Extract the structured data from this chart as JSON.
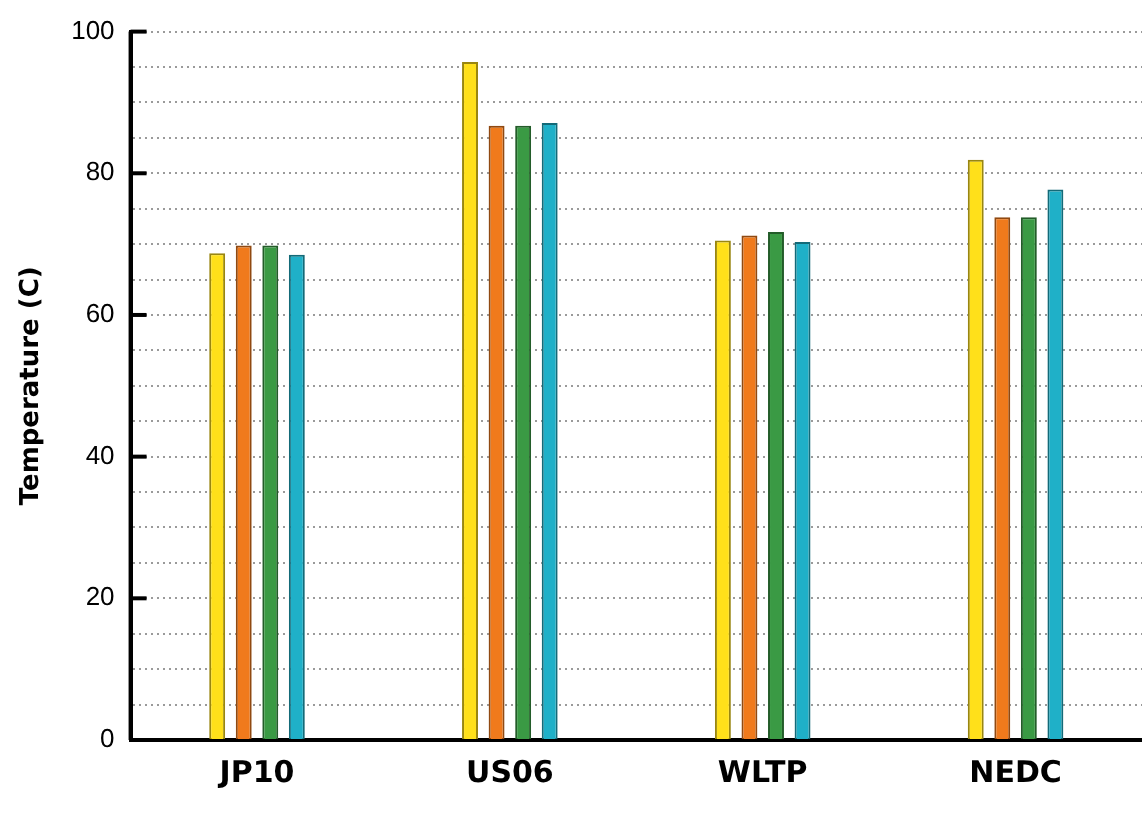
{
  "chart_data": {
    "type": "bar",
    "ylabel": "Temperature (C)",
    "categories": [
      "JP10",
      "US06",
      "WLTP",
      "NEDC"
    ],
    "series": [
      {
        "color": "#ffe01a",
        "values": [
          68.7,
          95.7,
          70.5,
          81.9
        ]
      },
      {
        "color": "#f07a1c",
        "values": [
          69.8,
          86.7,
          71.2,
          73.8
        ]
      },
      {
        "color": "#3a9a44",
        "values": [
          69.8,
          86.7,
          71.7,
          73.8
        ]
      },
      {
        "color": "#1fb0c8",
        "values": [
          68.5,
          87.1,
          70.3,
          77.7
        ]
      }
    ],
    "ylim": [
      0,
      100
    ],
    "yticks": [
      0,
      {
        "value": 5,
        "label": null
      },
      {
        "value": 10,
        "label": null
      },
      {
        "value": 15,
        "label": null
      },
      20,
      {
        "value": 25,
        "label": null
      },
      {
        "value": 30,
        "label": null
      },
      {
        "value": 35,
        "label": null
      },
      40,
      {
        "value": 45,
        "label": null
      },
      {
        "value": 50,
        "label": null
      },
      {
        "value": 55,
        "label": null
      },
      60,
      {
        "value": 65,
        "label": null
      },
      {
        "value": 70,
        "label": null
      },
      {
        "value": 75,
        "label": null
      },
      80,
      {
        "value": 85,
        "label": null
      },
      {
        "value": 90,
        "label": null
      },
      {
        "value": 95,
        "label": null
      },
      100
    ],
    "grid": "y",
    "legend": false
  }
}
